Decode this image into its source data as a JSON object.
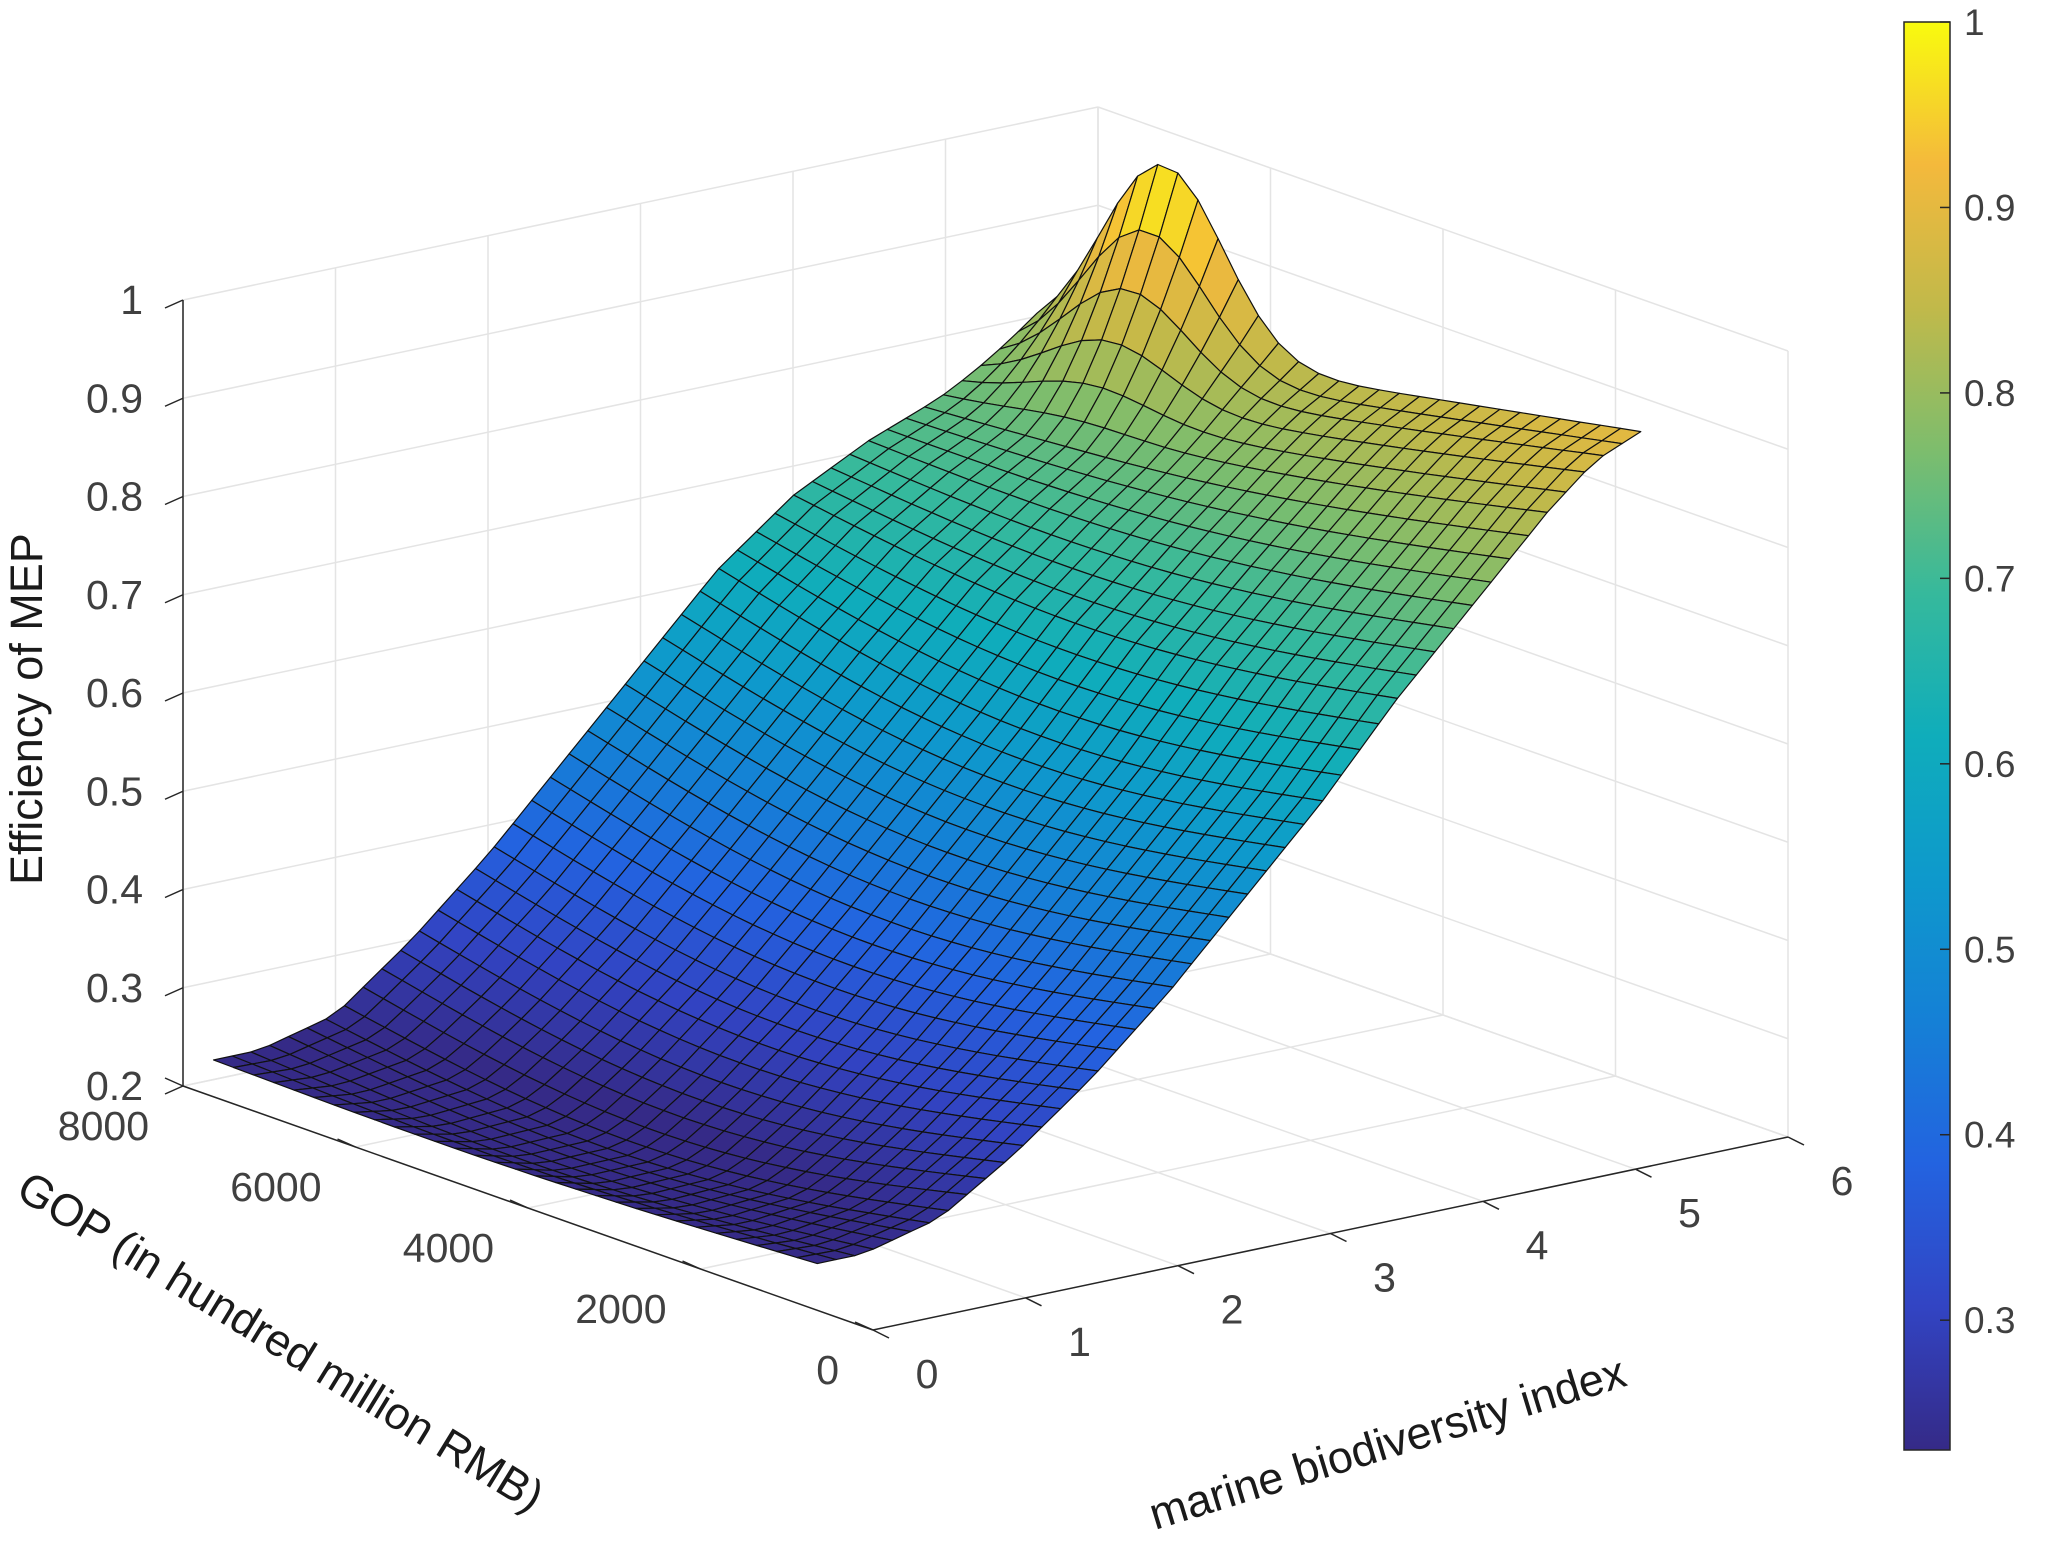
{
  "chart_data": {
    "type": "surface3d",
    "title": "",
    "xlabel": "marine biodiversity index",
    "ylabel": "GOP (in hundred million RMB)",
    "zlabel": "Efficiency of MEP",
    "xlim": [
      0,
      6
    ],
    "ylim": [
      0,
      8000
    ],
    "zlim": [
      0.2,
      1
    ],
    "x_ticks": [
      "0",
      "1",
      "2",
      "3",
      "4",
      "5",
      "6"
    ],
    "y_ticks": [
      "0",
      "2000",
      "4000",
      "6000",
      "8000"
    ],
    "z_ticks": [
      "0.2",
      "0.3",
      "0.4",
      "0.5",
      "0.6",
      "0.7",
      "0.8",
      "0.9",
      "1"
    ],
    "colormap": "parula",
    "colorbar": {
      "ticks": [
        "0.3",
        "0.4",
        "0.5",
        "0.6",
        "0.7",
        "0.8",
        "0.9",
        "1"
      ],
      "range": [
        0.23,
        1
      ]
    },
    "grid": true,
    "surface_extent": {
      "x": [
        0.2,
        5.6
      ],
      "y": [
        1000,
        8000
      ]
    },
    "profile_along_x_at_gop_1000": [
      [
        0.2,
        0.23
      ],
      [
        0.5,
        0.23
      ],
      [
        1,
        0.25
      ],
      [
        1.5,
        0.3
      ],
      [
        2,
        0.36
      ],
      [
        2.5,
        0.43
      ],
      [
        3,
        0.51
      ],
      [
        3.5,
        0.59
      ],
      [
        4,
        0.68
      ],
      [
        4.5,
        0.76
      ],
      [
        5,
        0.84
      ],
      [
        5.3,
        0.88
      ],
      [
        5.6,
        0.9
      ]
    ],
    "profile_along_x_at_gop_8000": [
      [
        0.2,
        0.22
      ],
      [
        0.5,
        0.22
      ],
      [
        1,
        0.24
      ],
      [
        1.5,
        0.3
      ],
      [
        2,
        0.37
      ],
      [
        2.5,
        0.45
      ],
      [
        3,
        0.53
      ],
      [
        3.5,
        0.61
      ],
      [
        4,
        0.67
      ],
      [
        4.5,
        0.71
      ],
      [
        5,
        0.74
      ],
      [
        5.3,
        0.76
      ],
      [
        5.6,
        0.78
      ]
    ],
    "corner_values": {
      "x0.2_y1000": 0.23,
      "x0.2_y8000": 0.22,
      "x5.6_y1000": 0.9,
      "x5.6_y8000": 0.78,
      "x5.6_y6500": 1.0
    }
  }
}
